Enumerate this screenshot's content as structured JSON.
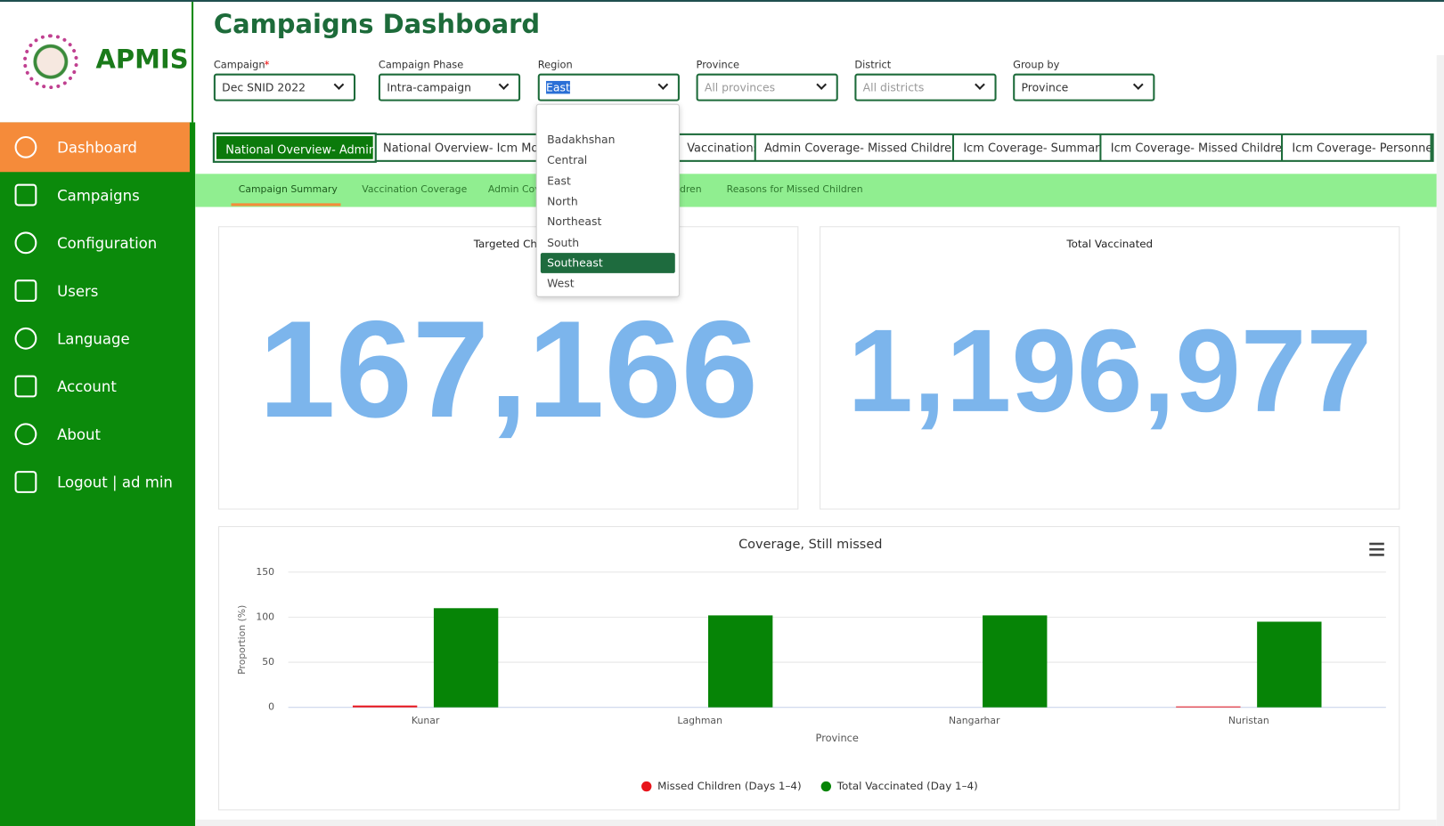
{
  "app": {
    "name": "APMIS"
  },
  "sidebar": [
    "Dashboard",
    "Campaigns",
    "Configuration",
    "Users",
    "Language",
    "Account",
    "About",
    "Logout | ad min"
  ],
  "header": {
    "title": "Campaigns Dashboard"
  },
  "filters": [
    {
      "label": "Campaign",
      "required": "*",
      "value": "Dec SNID 2022"
    },
    {
      "label": "Campaign Phase",
      "value": "Intra-campaign"
    },
    {
      "label": "Region",
      "value": "East"
    },
    {
      "label": "Province",
      "placeholder": "All provinces"
    },
    {
      "label": "District",
      "placeholder": "All districts"
    },
    {
      "label": "Group by",
      "value": "Province"
    }
  ],
  "region_options": [
    "Badakhshan",
    "Central",
    "East",
    "North",
    "Northeast",
    "South",
    "Southeast",
    "West"
  ],
  "region_highlighted": "Southeast",
  "tabs": [
    "National Overview- Admin",
    "National Overview- Icm Mon",
    "Vaccinations",
    "Admin Coverage- Missed Children",
    "Icm Coverage- Summary",
    "Icm Coverage- Missed Children",
    "Icm Coverage- Personnel"
  ],
  "subtabs": [
    "Campaign Summary",
    "Vaccination Coverage",
    "Admin Cov",
    "dren",
    "Reasons for Missed Children"
  ],
  "kpis": [
    {
      "title": "Targeted Chil",
      "value": "167,166"
    },
    {
      "title": "Total Vaccinated",
      "value": "1,196,977"
    }
  ],
  "chart_data": {
    "type": "bar",
    "title": "Coverage, Still missed",
    "x_label": "Province",
    "y_label": "Proportion (%)",
    "categories": [
      "Kunar",
      "Laghman",
      "Nangarhar",
      "Nuristan"
    ],
    "series": [
      {
        "name": "Missed Children (Days 1–4)",
        "color": "#e8141b",
        "values": [
          2,
          0,
          0,
          1
        ]
      },
      {
        "name": "Total Vaccinated (Day 1–4)",
        "color": "#068406",
        "values": [
          110,
          102,
          102,
          95
        ]
      }
    ],
    "ylim": [
      0,
      150
    ],
    "yticks": [
      0,
      50,
      100,
      150
    ],
    "grid": true,
    "legend": "bottom"
  }
}
